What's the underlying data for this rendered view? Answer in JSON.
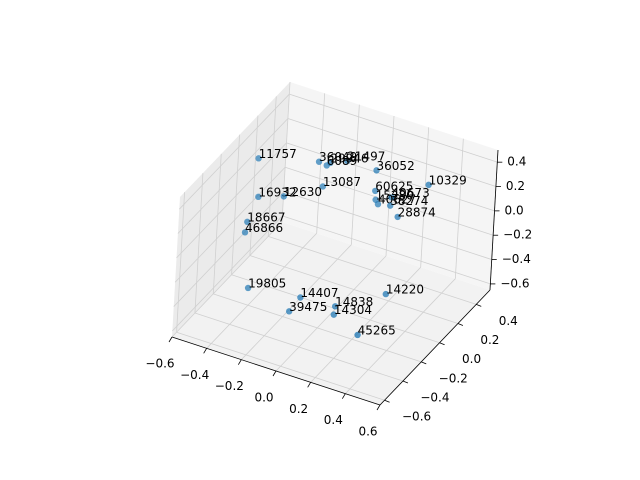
{
  "chart_data": {
    "type": "scatter3d",
    "labels": [
      "11757",
      "21497",
      "36049",
      "29946",
      "6089",
      "36052",
      "10329",
      "13087",
      "16932",
      "12630",
      "60625",
      "15280",
      "40673",
      "40627",
      "38274",
      "28874",
      "18667",
      "46866",
      "19805",
      "14407",
      "39475",
      "14838",
      "14304",
      "14220",
      "45265"
    ],
    "x": [
      -0.47,
      -0.07,
      -0.19,
      -0.15,
      -0.16,
      0.07,
      0.36,
      -0.18,
      -0.42,
      -0.31,
      0.04,
      0.05,
      0.11,
      0.05,
      0.11,
      0.19,
      -0.45,
      -0.44,
      -0.39,
      -0.12,
      -0.14,
      0.07,
      0.07,
      0.27,
      0.26
    ],
    "y": [
      -0.03,
      0.18,
      0.1,
      0.15,
      0.13,
      0.24,
      0.26,
      0.14,
      -0.11,
      -0.04,
      0.3,
      0.29,
      0.35,
      0.32,
      0.34,
      0.27,
      -0.16,
      -0.2,
      -0.23,
      -0.17,
      -0.25,
      -0.15,
      -0.16,
      0.02,
      -0.26
    ],
    "z": [
      0.39,
      0.39,
      0.39,
      0.36,
      0.35,
      0.33,
      0.33,
      0.16,
      0.16,
      0.16,
      0.1,
      0.04,
      0.04,
      -0.02,
      -0.02,
      -0.02,
      -0.02,
      -0.07,
      -0.48,
      -0.48,
      -0.54,
      -0.48,
      -0.54,
      -0.42,
      -0.54
    ],
    "color": "#1f77b4",
    "xlim": [
      -0.6,
      0.6
    ],
    "ylim": [
      -0.65,
      0.55
    ],
    "zlim": [
      -0.65,
      0.5
    ],
    "xticks": [
      {
        "value": -0.6,
        "label": "−0.6"
      },
      {
        "value": -0.4,
        "label": "−0.4"
      },
      {
        "value": -0.2,
        "label": "−0.2"
      },
      {
        "value": 0,
        "label": "0.0"
      },
      0.2,
      0.4,
      0.6
    ],
    "yticks": [
      {
        "value": -0.6,
        "label": "−0.6"
      },
      {
        "value": -0.4,
        "label": "−0.4"
      },
      {
        "value": -0.2,
        "label": "−0.2"
      },
      {
        "value": 0,
        "label": "0.0"
      },
      0.2,
      0.4
    ],
    "zticks": [
      {
        "value": -0.6,
        "label": "−0.6"
      },
      {
        "value": -0.4,
        "label": "−0.4"
      },
      {
        "value": -0.2,
        "label": "−0.2"
      },
      {
        "value": 0,
        "label": "0.0"
      },
      0.2,
      0.4
    ],
    "grid": true
  }
}
